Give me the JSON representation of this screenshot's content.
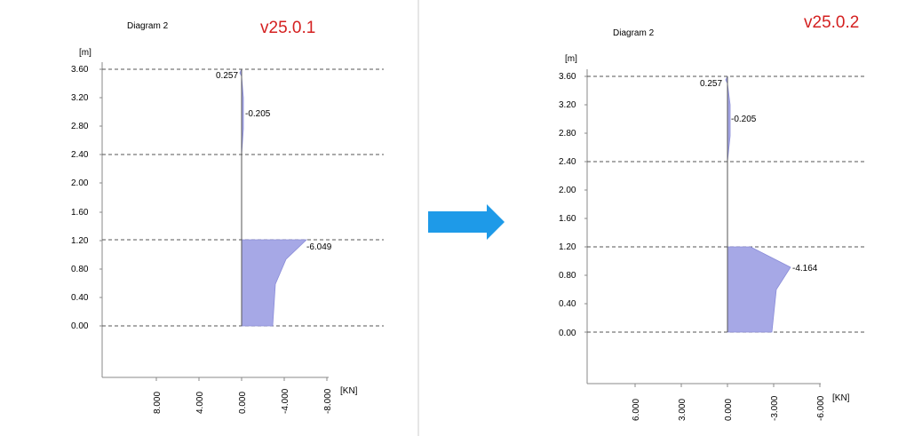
{
  "colors": {
    "fill": "#a6a8e6",
    "edge": "#8a8cd8",
    "version": "#d42020",
    "arrow": "#1e9ae8",
    "divider": "#cccccc"
  },
  "arrow_icon": "right-arrow-icon",
  "panels": [
    {
      "diagram_title": "Diagram 2",
      "version": "v25.0.1",
      "y_unit": "[m]",
      "x_unit": "[KN]",
      "y_ticks": [
        "3.60",
        "3.20",
        "2.80",
        "2.40",
        "2.00",
        "1.60",
        "1.20",
        "0.80",
        "0.40",
        "0.00"
      ],
      "x_ticks": [
        "8.000",
        "4.000",
        "0.000",
        "-4.000",
        "-8.000"
      ],
      "value_labels": [
        "0.257",
        "-0.205",
        "-6.049"
      ]
    },
    {
      "diagram_title": "Diagram 2",
      "version": "v25.0.2",
      "y_unit": "[m]",
      "x_unit": "[KN]",
      "y_ticks": [
        "3.60",
        "3.20",
        "2.80",
        "2.40",
        "2.00",
        "1.60",
        "1.20",
        "0.80",
        "0.40",
        "0.00"
      ],
      "x_ticks": [
        "6.000",
        "3.000",
        "0.000",
        "-3.000",
        "-6.000"
      ],
      "value_labels": [
        "0.257",
        "-0.205",
        "-4.164"
      ]
    }
  ]
}
